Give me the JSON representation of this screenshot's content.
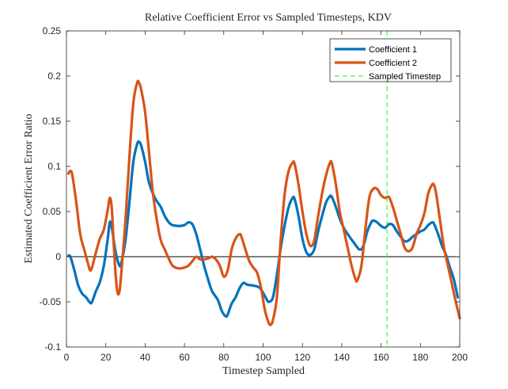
{
  "chart_data": {
    "type": "line",
    "title": "Relative Coefficient Error vs Sampled Timesteps, KDV",
    "xlabel": "Timestep Sampled",
    "ylabel": "Estimated Coefficient Error Ratio",
    "xlim": [
      0,
      200
    ],
    "ylim": [
      -0.1,
      0.25
    ],
    "xticks": [
      0,
      20,
      40,
      60,
      80,
      100,
      120,
      140,
      160,
      180,
      200
    ],
    "yticks": [
      -0.1,
      -0.05,
      0,
      0.05,
      0.1,
      0.15,
      0.2,
      0.25
    ],
    "xtick_labels": [
      "0",
      "20",
      "40",
      "60",
      "80",
      "100",
      "120",
      "140",
      "160",
      "180",
      "200"
    ],
    "ytick_labels": [
      "-0.1",
      "-0.05",
      "0",
      "0.05",
      "0.1",
      "0.15",
      "0.2",
      "0.25"
    ],
    "grid": false,
    "legend_position": "top-right",
    "zero_line": true,
    "series": [
      {
        "name": "Coefficient 1",
        "color": "#0072BD",
        "points": [
          [
            1,
            0.001
          ],
          [
            2,
            0.0
          ],
          [
            4,
            -0.015
          ],
          [
            6,
            -0.032
          ],
          [
            8,
            -0.041
          ],
          [
            10,
            -0.045
          ],
          [
            12,
            -0.051
          ],
          [
            13,
            -0.05
          ],
          [
            15,
            -0.038
          ],
          [
            17,
            -0.028
          ],
          [
            19,
            -0.01
          ],
          [
            21,
            0.02
          ],
          [
            22,
            0.038
          ],
          [
            23,
            0.033
          ],
          [
            25,
            0.005
          ],
          [
            27,
            -0.01
          ],
          [
            28,
            -0.006
          ],
          [
            30,
            0.018
          ],
          [
            32,
            0.06
          ],
          [
            34,
            0.105
          ],
          [
            36,
            0.125
          ],
          [
            37,
            0.127
          ],
          [
            38,
            0.123
          ],
          [
            40,
            0.105
          ],
          [
            42,
            0.082
          ],
          [
            45,
            0.065
          ],
          [
            48,
            0.055
          ],
          [
            50,
            0.045
          ],
          [
            53,
            0.036
          ],
          [
            57,
            0.034
          ],
          [
            60,
            0.035
          ],
          [
            62,
            0.038
          ],
          [
            64,
            0.036
          ],
          [
            66,
            0.025
          ],
          [
            68,
            0.008
          ],
          [
            70,
            -0.01
          ],
          [
            72,
            -0.025
          ],
          [
            74,
            -0.038
          ],
          [
            77,
            -0.048
          ],
          [
            79,
            -0.06
          ],
          [
            81,
            -0.066
          ],
          [
            82,
            -0.064
          ],
          [
            84,
            -0.052
          ],
          [
            86,
            -0.045
          ],
          [
            88,
            -0.035
          ],
          [
            90,
            -0.029
          ],
          [
            92,
            -0.031
          ],
          [
            95,
            -0.032
          ],
          [
            98,
            -0.034
          ],
          [
            100,
            -0.04
          ],
          [
            102,
            -0.048
          ],
          [
            103,
            -0.05
          ],
          [
            105,
            -0.045
          ],
          [
            107,
            -0.02
          ],
          [
            109,
            0.01
          ],
          [
            111,
            0.035
          ],
          [
            113,
            0.055
          ],
          [
            115,
            0.065
          ],
          [
            116,
            0.064
          ],
          [
            118,
            0.045
          ],
          [
            120,
            0.02
          ],
          [
            122,
            0.005
          ],
          [
            124,
            0.002
          ],
          [
            126,
            0.008
          ],
          [
            128,
            0.028
          ],
          [
            130,
            0.045
          ],
          [
            132,
            0.06
          ],
          [
            134,
            0.067
          ],
          [
            135,
            0.066
          ],
          [
            137,
            0.055
          ],
          [
            139,
            0.042
          ],
          [
            141,
            0.032
          ],
          [
            143,
            0.025
          ],
          [
            146,
            0.016
          ],
          [
            149,
            0.008
          ],
          [
            151,
            0.012
          ],
          [
            153,
            0.028
          ],
          [
            155,
            0.038
          ],
          [
            156,
            0.04
          ],
          [
            158,
            0.038
          ],
          [
            160,
            0.034
          ],
          [
            162,
            0.032
          ],
          [
            164,
            0.036
          ],
          [
            166,
            0.035
          ],
          [
            168,
            0.028
          ],
          [
            170,
            0.022
          ],
          [
            172,
            0.017
          ],
          [
            174,
            0.018
          ],
          [
            176,
            0.022
          ],
          [
            178,
            0.025
          ],
          [
            180,
            0.028
          ],
          [
            182,
            0.03
          ],
          [
            184,
            0.035
          ],
          [
            186,
            0.038
          ],
          [
            187,
            0.036
          ],
          [
            189,
            0.025
          ],
          [
            191,
            0.012
          ],
          [
            193,
            0.002
          ],
          [
            195,
            -0.012
          ],
          [
            197,
            -0.025
          ],
          [
            199,
            -0.045
          ]
        ]
      },
      {
        "name": "Coefficient 2",
        "color": "#D95319",
        "points": [
          [
            1,
            0.092
          ],
          [
            2,
            0.095
          ],
          [
            3,
            0.09
          ],
          [
            5,
            0.06
          ],
          [
            7,
            0.025
          ],
          [
            9,
            0.008
          ],
          [
            11,
            -0.008
          ],
          [
            12,
            -0.015
          ],
          [
            13,
            -0.012
          ],
          [
            15,
            0.005
          ],
          [
            17,
            0.02
          ],
          [
            19,
            0.03
          ],
          [
            21,
            0.052
          ],
          [
            22,
            0.065
          ],
          [
            23,
            0.055
          ],
          [
            24,
            0.015
          ],
          [
            25,
            -0.02
          ],
          [
            26,
            -0.04
          ],
          [
            27,
            -0.038
          ],
          [
            28,
            -0.015
          ],
          [
            30,
            0.04
          ],
          [
            32,
            0.11
          ],
          [
            34,
            0.17
          ],
          [
            36,
            0.193
          ],
          [
            37,
            0.192
          ],
          [
            38,
            0.185
          ],
          [
            40,
            0.16
          ],
          [
            42,
            0.115
          ],
          [
            44,
            0.07
          ],
          [
            46,
            0.04
          ],
          [
            48,
            0.018
          ],
          [
            50,
            0.008
          ],
          [
            52,
            -0.002
          ],
          [
            54,
            -0.01
          ],
          [
            57,
            -0.013
          ],
          [
            60,
            -0.012
          ],
          [
            62,
            -0.01
          ],
          [
            64,
            -0.005
          ],
          [
            66,
            0.0
          ],
          [
            68,
            -0.003
          ],
          [
            70,
            -0.003
          ],
          [
            72,
            -0.002
          ],
          [
            74,
            0.0
          ],
          [
            76,
            -0.003
          ],
          [
            78,
            -0.01
          ],
          [
            80,
            -0.022
          ],
          [
            82,
            -0.015
          ],
          [
            84,
            0.008
          ],
          [
            86,
            0.02
          ],
          [
            88,
            0.025
          ],
          [
            89,
            0.022
          ],
          [
            91,
            0.008
          ],
          [
            93,
            -0.005
          ],
          [
            95,
            -0.012
          ],
          [
            97,
            -0.018
          ],
          [
            99,
            -0.035
          ],
          [
            101,
            -0.06
          ],
          [
            103,
            -0.074
          ],
          [
            104,
            -0.075
          ],
          [
            105,
            -0.07
          ],
          [
            107,
            -0.045
          ],
          [
            109,
            0.02
          ],
          [
            111,
            0.07
          ],
          [
            113,
            0.095
          ],
          [
            115,
            0.104
          ],
          [
            116,
            0.103
          ],
          [
            118,
            0.08
          ],
          [
            120,
            0.05
          ],
          [
            122,
            0.025
          ],
          [
            124,
            0.012
          ],
          [
            126,
            0.018
          ],
          [
            128,
            0.045
          ],
          [
            130,
            0.07
          ],
          [
            132,
            0.09
          ],
          [
            134,
            0.104
          ],
          [
            135,
            0.103
          ],
          [
            137,
            0.08
          ],
          [
            139,
            0.05
          ],
          [
            141,
            0.03
          ],
          [
            143,
            0.01
          ],
          [
            145,
            -0.01
          ],
          [
            147,
            -0.025
          ],
          [
            148,
            -0.026
          ],
          [
            150,
            -0.01
          ],
          [
            152,
            0.03
          ],
          [
            154,
            0.065
          ],
          [
            156,
            0.075
          ],
          [
            158,
            0.075
          ],
          [
            160,
            0.068
          ],
          [
            162,
            0.065
          ],
          [
            164,
            0.066
          ],
          [
            166,
            0.055
          ],
          [
            168,
            0.04
          ],
          [
            170,
            0.025
          ],
          [
            172,
            0.01
          ],
          [
            174,
            0.006
          ],
          [
            176,
            0.01
          ],
          [
            178,
            0.025
          ],
          [
            180,
            0.035
          ],
          [
            182,
            0.048
          ],
          [
            184,
            0.07
          ],
          [
            186,
            0.08
          ],
          [
            187,
            0.079
          ],
          [
            188,
            0.07
          ],
          [
            190,
            0.04
          ],
          [
            192,
            0.01
          ],
          [
            194,
            -0.01
          ],
          [
            196,
            -0.03
          ],
          [
            198,
            -0.05
          ],
          [
            200,
            -0.068
          ]
        ]
      },
      {
        "name": "Sampled Timestep",
        "color": "#00FF00",
        "style": "dashed",
        "x": 163
      }
    ]
  }
}
